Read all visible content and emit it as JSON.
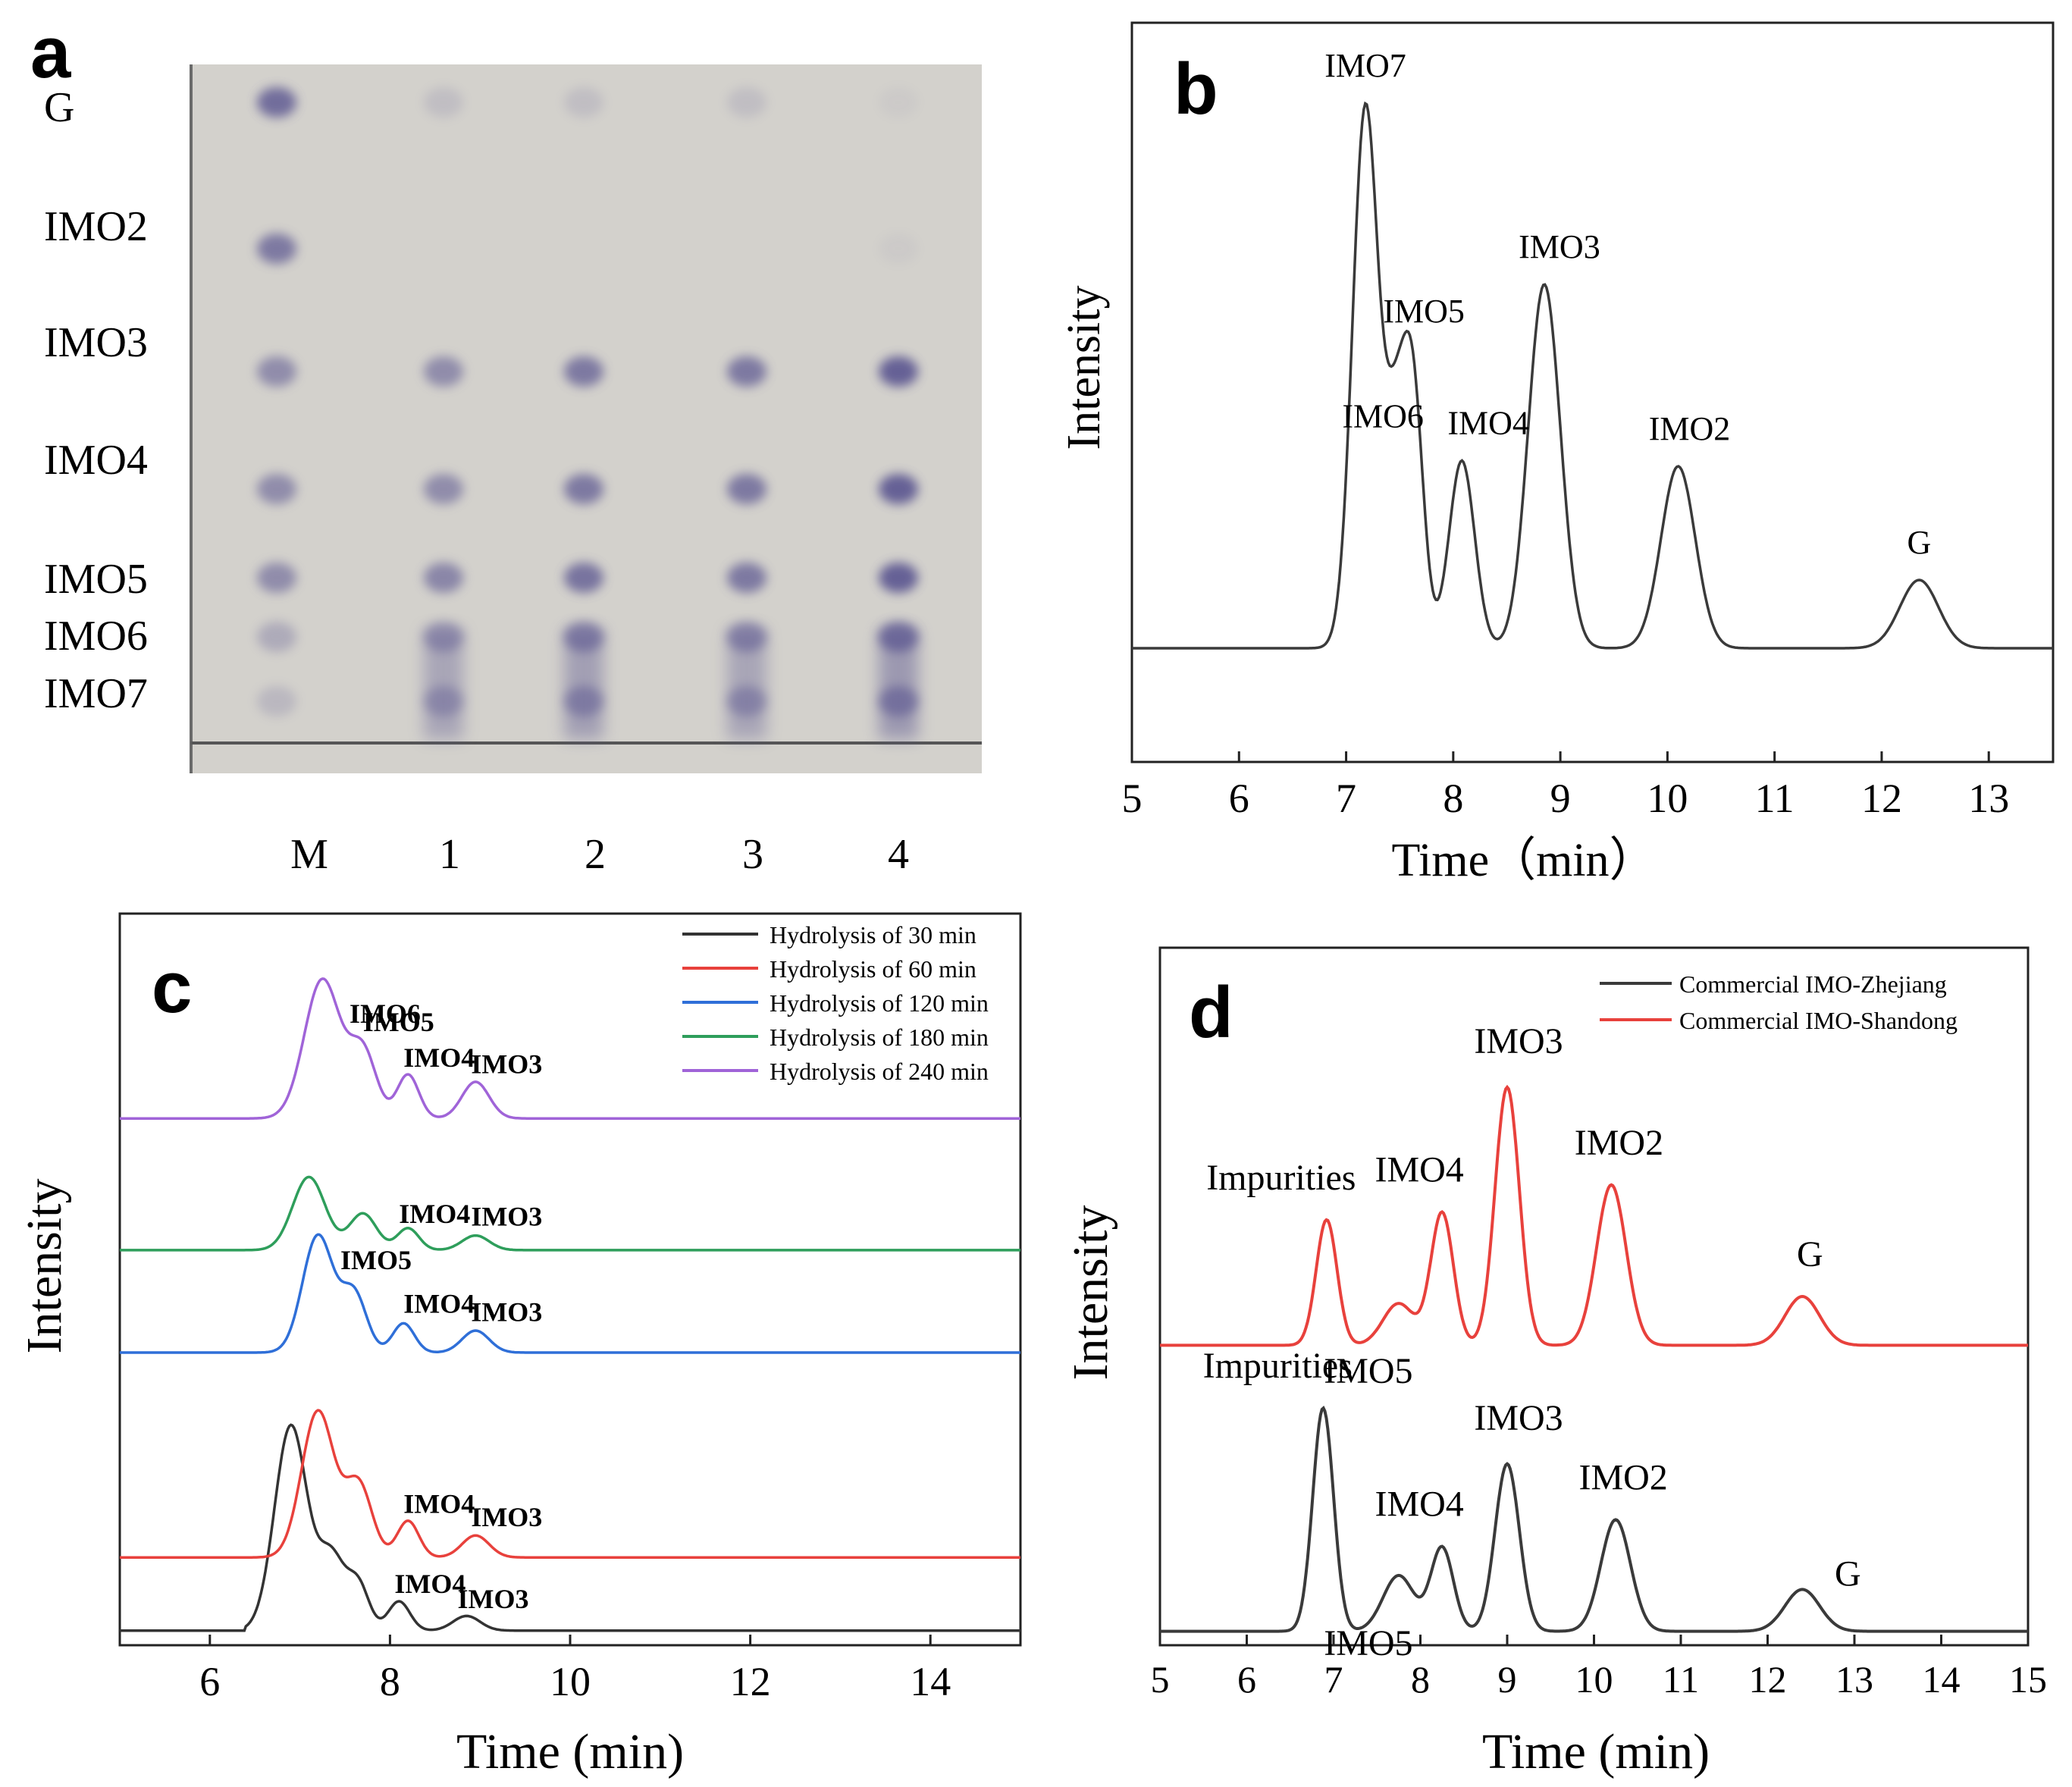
{
  "panel_labels": [
    "a",
    "b",
    "c",
    "d"
  ],
  "chart_data": [
    {
      "panel": "a",
      "type": "other",
      "description_kind": "thin-layer chromatography plate",
      "band_labels": [
        "G",
        "IMO2",
        "IMO3",
        "IMO4",
        "IMO5",
        "IMO6",
        "IMO7"
      ],
      "lane_labels": [
        "M",
        "1",
        "2",
        "3",
        "4"
      ],
      "spot_color": "#5a5590",
      "plate_color": "#d3d1cc"
    },
    {
      "panel": "b",
      "type": "line",
      "title": "",
      "xlabel": "Time（min）",
      "ylabel": "Intensity",
      "xlim": [
        5,
        13.6
      ],
      "ylim": [
        0,
        1.3
      ],
      "xticks": [
        5,
        6,
        7,
        8,
        9,
        10,
        11,
        12,
        13
      ],
      "baseline": 0.2,
      "color": "#3a3a3a",
      "peaks": [
        {
          "label": "IMO7",
          "x": 7.18,
          "height": 0.95,
          "width": 0.12
        },
        {
          "label": "IMO6",
          "x": 7.45,
          "height": 0.32,
          "width": 0.1
        },
        {
          "label": "IMO5",
          "x": 7.62,
          "height": 0.45,
          "width": 0.1
        },
        {
          "label": "IMO4",
          "x": 8.08,
          "height": 0.33,
          "width": 0.12
        },
        {
          "label": "IMO3",
          "x": 8.85,
          "height": 0.64,
          "width": 0.15
        },
        {
          "label": "IMO2",
          "x": 10.1,
          "height": 0.32,
          "width": 0.16
        },
        {
          "label": "G",
          "x": 12.35,
          "height": 0.12,
          "width": 0.18
        }
      ]
    },
    {
      "panel": "c",
      "type": "line",
      "xlabel": "Time (min)",
      "ylabel": "Intensity",
      "xlim": [
        5,
        15
      ],
      "ylim": [
        0,
        1.0
      ],
      "xticks": [
        6,
        8,
        10,
        12,
        14
      ],
      "legend_position": "top-right",
      "series": [
        {
          "name": "Hydrolysis of 30 min",
          "color": "#333333",
          "baseline": 0.02,
          "peaks": [
            {
              "x": 6.9,
              "h": 0.28,
              "w": 0.18
            },
            {
              "x": 7.35,
              "h": 0.1,
              "w": 0.15
            },
            {
              "x": 7.65,
              "h": 0.06,
              "w": 0.12
            },
            {
              "x": 8.1,
              "h": 0.04,
              "w": 0.12
            },
            {
              "x": 8.85,
              "h": 0.02,
              "w": 0.15
            }
          ],
          "labels": [
            {
              "text": "IMO4",
              "x": 8.05
            },
            {
              "text": "IMO3",
              "x": 8.75
            }
          ]
        },
        {
          "name": "Hydrolysis of 60 min",
          "color": "#e8413c",
          "baseline": 0.12,
          "peaks": [
            {
              "x": 7.2,
              "h": 0.2,
              "w": 0.18
            },
            {
              "x": 7.65,
              "h": 0.1,
              "w": 0.15
            },
            {
              "x": 8.2,
              "h": 0.05,
              "w": 0.12
            },
            {
              "x": 8.95,
              "h": 0.03,
              "w": 0.15
            }
          ],
          "labels": [
            {
              "text": "IMO4",
              "x": 8.15
            },
            {
              "text": "IMO3",
              "x": 8.9
            }
          ]
        },
        {
          "name": "Hydrolysis of 120 min",
          "color": "#2f6fd8",
          "baseline": 0.4,
          "peaks": [
            {
              "x": 7.2,
              "h": 0.16,
              "w": 0.17
            },
            {
              "x": 7.6,
              "h": 0.08,
              "w": 0.14
            },
            {
              "x": 8.15,
              "h": 0.04,
              "w": 0.12
            },
            {
              "x": 8.95,
              "h": 0.03,
              "w": 0.15
            }
          ],
          "labels": [
            {
              "text": "IMO5",
              "x": 7.45
            },
            {
              "text": "IMO4",
              "x": 8.15
            },
            {
              "text": "IMO3",
              "x": 8.9
            }
          ]
        },
        {
          "name": "Hydrolysis of 180 min",
          "color": "#2e9e5b",
          "baseline": 0.54,
          "peaks": [
            {
              "x": 7.1,
              "h": 0.1,
              "w": 0.18
            },
            {
              "x": 7.7,
              "h": 0.05,
              "w": 0.15
            },
            {
              "x": 8.2,
              "h": 0.03,
              "w": 0.12
            },
            {
              "x": 8.95,
              "h": 0.02,
              "w": 0.15
            }
          ],
          "labels": [
            {
              "text": "IMO4",
              "x": 8.1
            },
            {
              "text": "IMO3",
              "x": 8.9
            }
          ]
        },
        {
          "name": "Hydrolysis of 240 min",
          "color": "#a064d8",
          "baseline": 0.72,
          "peaks": [
            {
              "x": 7.25,
              "h": 0.19,
              "w": 0.2
            },
            {
              "x": 7.7,
              "h": 0.09,
              "w": 0.15
            },
            {
              "x": 8.2,
              "h": 0.06,
              "w": 0.12
            },
            {
              "x": 8.95,
              "h": 0.05,
              "w": 0.15
            }
          ],
          "labels": [
            {
              "text": "IMO6",
              "x": 7.55
            },
            {
              "text": "IMO5",
              "x": 7.7
            },
            {
              "text": "IMO4",
              "x": 8.15
            },
            {
              "text": "IMO3",
              "x": 8.9
            }
          ]
        }
      ]
    },
    {
      "panel": "d",
      "type": "line",
      "xlabel": "Time (min)",
      "ylabel": "Intensity",
      "xlim": [
        5,
        15
      ],
      "ylim": [
        0,
        1.0
      ],
      "xticks": [
        5,
        6,
        7,
        8,
        9,
        10,
        11,
        12,
        13,
        14,
        15
      ],
      "legend_position": "top-right",
      "series": [
        {
          "name": "Commercial IMO-Zhejiang",
          "color": "#3a3a3a",
          "baseline": 0.02,
          "peaks": [
            {
              "x": 6.88,
              "h": 0.32,
              "w": 0.12
            },
            {
              "x": 7.75,
              "h": 0.08,
              "w": 0.18
            },
            {
              "x": 8.25,
              "h": 0.12,
              "w": 0.13
            },
            {
              "x": 9.0,
              "h": 0.24,
              "w": 0.14
            },
            {
              "x": 10.25,
              "h": 0.16,
              "w": 0.17
            },
            {
              "x": 12.4,
              "h": 0.06,
              "w": 0.2
            }
          ],
          "labels": [
            "Impurities",
            "IMO5",
            "IMO4",
            "IMO3",
            "IMO2",
            "G"
          ]
        },
        {
          "name": "Commercial IMO-Shandong",
          "color": "#e8413c",
          "baseline": 0.43,
          "peaks": [
            {
              "x": 6.92,
              "h": 0.18,
              "w": 0.12
            },
            {
              "x": 7.75,
              "h": 0.06,
              "w": 0.18
            },
            {
              "x": 8.25,
              "h": 0.19,
              "w": 0.13
            },
            {
              "x": 9.0,
              "h": 0.37,
              "w": 0.14
            },
            {
              "x": 10.2,
              "h": 0.23,
              "w": 0.17
            },
            {
              "x": 12.4,
              "h": 0.07,
              "w": 0.2
            }
          ],
          "labels": [
            "Impurities",
            "IMO5",
            "IMO4",
            "IMO3",
            "IMO2",
            "G"
          ]
        }
      ]
    }
  ]
}
